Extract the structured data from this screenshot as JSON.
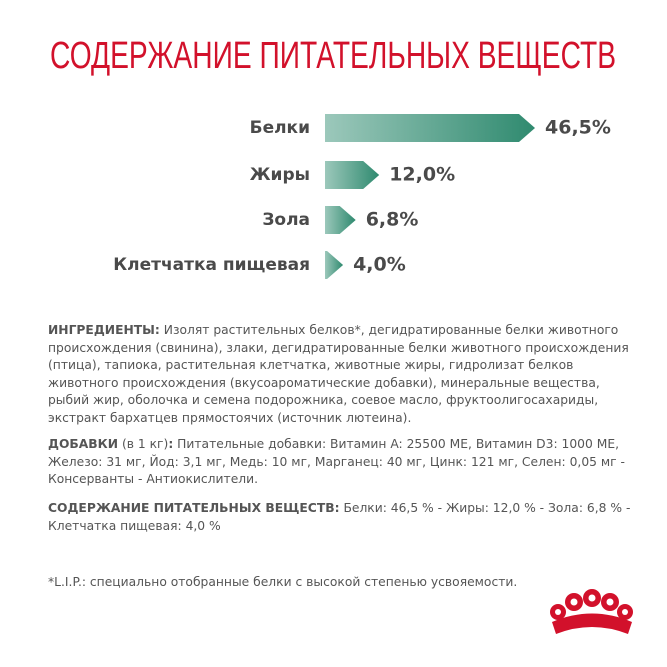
{
  "chart_data": {
    "type": "bar",
    "title": "СОДЕРЖАНИЕ ПИТАТЕЛЬНЫХ ВЕЩЕСТВ",
    "categories": [
      "Белки",
      "Жиры",
      "Зола",
      "Клетчатка пищевая"
    ],
    "values": [
      46.5,
      12.0,
      6.8,
      4.0
    ],
    "value_labels": [
      "46,5%",
      "12,0%",
      "6,8%",
      "4,0%"
    ],
    "color": "#2f8a6f"
  },
  "ingredients": {
    "label": "ИНГРЕДИЕНТЫ:",
    "text": "Изолят растительных белков*, дегидратированные белки животного происхождения (свинина), злаки, дегидратированные белки животного происхождения (птица), тапиока, растительная клетчатка, животные жиры, гидролизат белков животного происхождения (вкусоароматические добавки), минеральные вещества, рыбий жир, оболочка и семена подорожника, соевое масло, фруктоолигосахариды, экстракт бархатцев прямостоячих (источник лютеина)."
  },
  "additives": {
    "label": "ДОБАВКИ",
    "unit": "(в 1 кг)",
    "colon": ":",
    "text": "Питательные добавки: Витамин A: 25500 МЕ, Витамин D3: 1000 МЕ, Железо: 31 мг, Йод: 3,1 мг, Медь: 10 мг, Марганец: 40 мг, Цинк: 121 мг, Селен: 0,05 мг - Консерванты - Антиокислители."
  },
  "nutrients": {
    "label": "СОДЕРЖАНИЕ ПИТАТЕЛЬНЫХ ВЕЩЕСТВ:",
    "text": "Белки: 46,5 % - Жиры: 12,0 % - Зола: 6,8 % - Клетчатка пищевая: 4,0 %"
  },
  "footnote": "*L.I.P.: специально отобранные белки с высокой степенью усвояемости."
}
